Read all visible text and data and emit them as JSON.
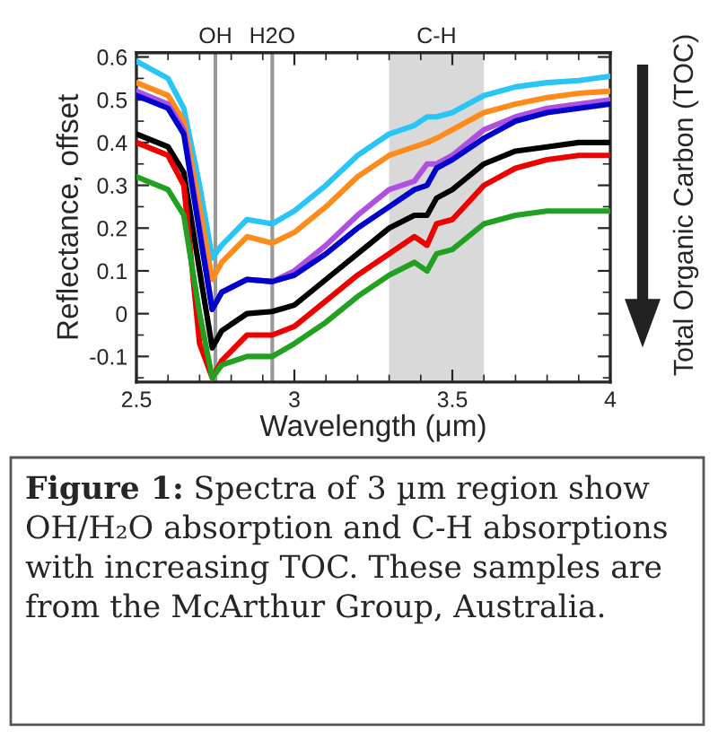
{
  "chart_data": {
    "type": "line",
    "xlabel": "Wavelength (μm)",
    "ylabel": "Reflectance, offset",
    "x": [
      2.5,
      2.6,
      2.65,
      2.7,
      2.74,
      2.77,
      2.85,
      2.93,
      3.0,
      3.1,
      3.2,
      3.3,
      3.38,
      3.42,
      3.45,
      3.5,
      3.6,
      3.7,
      3.8,
      3.9,
      4.0
    ],
    "series": [
      {
        "color": "#29c5f6",
        "values": [
          0.59,
          0.55,
          0.48,
          0.3,
          0.13,
          0.16,
          0.22,
          0.21,
          0.24,
          0.3,
          0.37,
          0.42,
          0.44,
          0.46,
          0.46,
          0.47,
          0.51,
          0.53,
          0.54,
          0.545,
          0.555
        ]
      },
      {
        "color": "#ff8c1a",
        "values": [
          0.54,
          0.51,
          0.45,
          0.25,
          0.08,
          0.12,
          0.18,
          0.165,
          0.19,
          0.25,
          0.32,
          0.37,
          0.39,
          0.4,
          0.41,
          0.43,
          0.47,
          0.49,
          0.505,
          0.515,
          0.52
        ]
      },
      {
        "color": "#b050e0",
        "values": [
          0.52,
          0.49,
          0.43,
          0.2,
          0.01,
          0.05,
          0.08,
          0.075,
          0.1,
          0.16,
          0.23,
          0.29,
          0.31,
          0.35,
          0.35,
          0.37,
          0.43,
          0.46,
          0.48,
          0.49,
          0.5
        ]
      },
      {
        "color": "#0000cc",
        "values": [
          0.51,
          0.48,
          0.42,
          0.19,
          0.01,
          0.05,
          0.08,
          0.075,
          0.09,
          0.14,
          0.2,
          0.25,
          0.29,
          0.3,
          0.34,
          0.36,
          0.41,
          0.45,
          0.47,
          0.48,
          0.49
        ]
      },
      {
        "color": "#000000",
        "values": [
          0.42,
          0.39,
          0.33,
          0.1,
          -0.08,
          -0.04,
          0.0,
          0.005,
          0.02,
          0.08,
          0.14,
          0.2,
          0.23,
          0.23,
          0.27,
          0.29,
          0.35,
          0.38,
          0.39,
          0.4,
          0.4
        ]
      },
      {
        "color": "#ee0000",
        "values": [
          0.4,
          0.37,
          0.3,
          -0.07,
          -0.15,
          -0.11,
          -0.05,
          -0.05,
          -0.03,
          0.03,
          0.09,
          0.14,
          0.18,
          0.16,
          0.21,
          0.22,
          0.3,
          0.34,
          0.36,
          0.37,
          0.37
        ]
      },
      {
        "color": "#22a022",
        "values": [
          0.32,
          0.29,
          0.23,
          0.0,
          -0.15,
          -0.12,
          -0.1,
          -0.1,
          -0.07,
          -0.02,
          0.04,
          0.09,
          0.12,
          0.1,
          0.14,
          0.15,
          0.21,
          0.23,
          0.24,
          0.24,
          0.24
        ]
      }
    ],
    "xlim": [
      2.5,
      4
    ],
    "xticks": [
      2.5,
      3,
      3.5,
      4
    ],
    "ylim": [
      -0.16,
      0.61
    ],
    "yticks": [
      -0.1,
      0,
      0.1,
      0.2,
      0.3,
      0.4,
      0.5,
      0.6
    ],
    "ref_lines": [
      {
        "axis": "x",
        "value": 2.75,
        "label": "OH",
        "color": "#999999"
      },
      {
        "axis": "x",
        "value": 2.93,
        "label": "H2O",
        "color": "#999999"
      }
    ],
    "bands": [
      {
        "axis": "x",
        "from": 3.3,
        "to": 3.6,
        "label": "C-H",
        "color": "#d9d9d9"
      }
    ],
    "annotations": [
      "Total Organic Carbon (TOC)",
      "Figure 1:",
      "Spectra of 3 µm region show OH/H₂O absorption and C-H absorptions with increasing TOC. These samples are from the McArthur Group, Australia."
    ],
    "grid": false,
    "legend": false
  }
}
